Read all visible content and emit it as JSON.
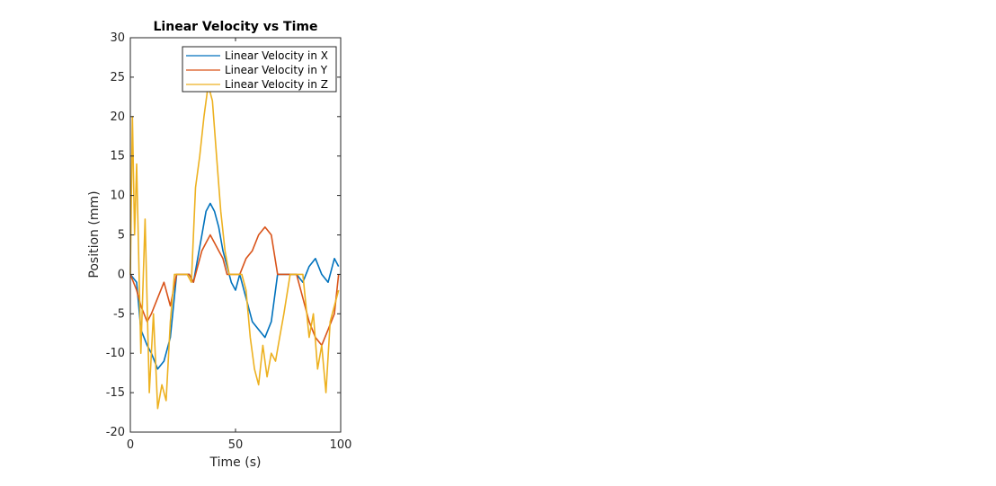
{
  "chart_data": {
    "type": "line",
    "title": "Linear Velocity vs Time",
    "xlabel": "Time (s)",
    "ylabel": "Position (mm)",
    "xlim": [
      0,
      100
    ],
    "ylim": [
      -20,
      30
    ],
    "xticks": [
      "0",
      "50",
      "100"
    ],
    "yticks": [
      "-20",
      "-15",
      "-10",
      "-5",
      "0",
      "5",
      "10",
      "15",
      "20",
      "25",
      "30"
    ],
    "grid": false,
    "legend_position": "top-right",
    "series": [
      {
        "name": "Linear Velocity in X",
        "color": "#0072BD",
        "x": [
          0,
          3,
          5,
          8,
          10,
          13,
          16,
          19,
          22,
          25,
          28,
          30,
          32,
          34,
          36,
          38,
          40,
          42,
          44,
          46,
          48,
          50,
          52,
          55,
          58,
          61,
          64,
          67,
          70,
          73,
          76,
          79,
          82,
          85,
          88,
          91,
          94,
          97,
          99
        ],
        "y": [
          0,
          -1,
          -7,
          -9,
          -10,
          -12,
          -11,
          -8,
          0,
          0,
          0,
          -1,
          2,
          5,
          8,
          9,
          8,
          6,
          3,
          1,
          -1,
          -2,
          0,
          -3,
          -6,
          -7,
          -8,
          -6,
          0,
          0,
          0,
          0,
          -1,
          1,
          2,
          0,
          -1,
          2,
          1
        ]
      },
      {
        "name": "Linear Velocity in Y",
        "color": "#D95319",
        "x": [
          0,
          3,
          5,
          8,
          10,
          13,
          16,
          19,
          22,
          25,
          28,
          30,
          32,
          34,
          36,
          38,
          40,
          42,
          44,
          46,
          48,
          50,
          52,
          55,
          58,
          61,
          64,
          67,
          70,
          73,
          76,
          79,
          82,
          85,
          88,
          91,
          94,
          97,
          99
        ],
        "y": [
          0,
          -2,
          -4,
          -6,
          -5,
          -3,
          -1,
          -4,
          0,
          0,
          0,
          -1,
          1,
          3,
          4,
          5,
          4,
          3,
          2,
          0,
          0,
          0,
          0,
          2,
          3,
          5,
          6,
          5,
          0,
          0,
          0,
          0,
          -3,
          -6,
          -8,
          -9,
          -7,
          -5,
          0
        ]
      },
      {
        "name": "Linear Velocity in Z",
        "color": "#EDB120",
        "x": [
          0,
          1,
          2,
          3,
          5,
          7,
          9,
          11,
          13,
          15,
          17,
          19,
          21,
          24,
          27,
          29,
          31,
          33,
          35,
          37,
          39,
          41,
          43,
          45,
          47,
          49,
          51,
          53,
          55,
          57,
          59,
          61,
          63,
          65,
          67,
          69,
          71,
          73,
          76,
          79,
          82,
          85,
          87,
          89,
          91,
          93,
          95,
          97,
          99
        ],
        "y": [
          0,
          20,
          5,
          14,
          -10,
          7,
          -15,
          -5,
          -17,
          -14,
          -16,
          -6,
          0,
          0,
          0,
          -1,
          11,
          15,
          20,
          24,
          22,
          15,
          8,
          3,
          0,
          0,
          0,
          0,
          -2,
          -8,
          -12,
          -14,
          -9,
          -13,
          -10,
          -11,
          -8,
          -5,
          0,
          0,
          0,
          -8,
          -5,
          -12,
          -9,
          -15,
          -6,
          -4,
          -2
        ]
      }
    ]
  }
}
